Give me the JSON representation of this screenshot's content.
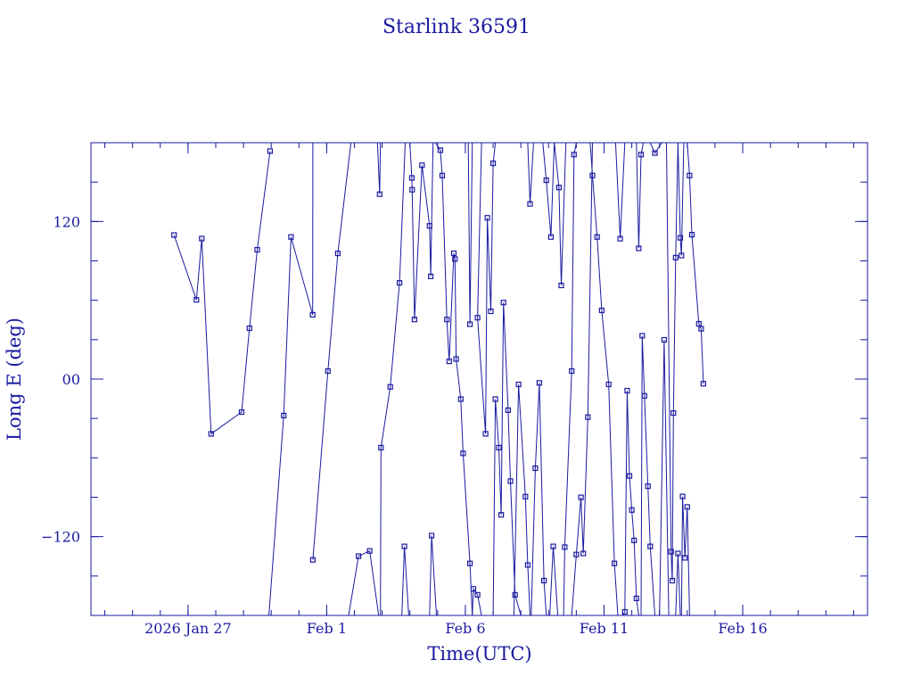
{
  "chart_data": {
    "type": "scatter",
    "title": "Starlink 36591",
    "xlabel": "Time(UTC)",
    "ylabel": "Long E (deg)",
    "x_range": [
      "2026-01-23T12:00",
      "2026-02-20T12:00"
    ],
    "ylim": [
      -180,
      180
    ],
    "x_ticks": [
      {
        "label": "2026 Jan 27",
        "x": "2026-01-27"
      },
      {
        "label": "Feb  1",
        "x": "2026-02-01"
      },
      {
        "label": "Feb  6",
        "x": "2026-02-06"
      },
      {
        "label": "Feb 11",
        "x": "2026-02-11"
      },
      {
        "label": "Feb 16",
        "x": "2026-02-16"
      }
    ],
    "y_ticks": [
      {
        "label": "−120",
        "y": -120
      },
      {
        "label": "00",
        "y": 0
      },
      {
        "label": "120",
        "y": 120
      }
    ],
    "marker": "open-square",
    "line_color": "#1a1aa0",
    "series": [
      {
        "points": [
          [
            "2026-01-26T11:54",
            109.7
          ],
          [
            "2026-01-27T07:18",
            60.3
          ],
          [
            "2026-01-27T11:54",
            107.0
          ],
          [
            "2026-01-27T20:00",
            -41.7
          ],
          [
            "2026-01-28T22:24",
            -25.1
          ],
          [
            "2026-01-29T05:12",
            38.7
          ],
          [
            "2026-01-29T11:54",
            98.5
          ],
          [
            "2026-01-29T23:00",
            173.6
          ]
        ]
      },
      {
        "points": [
          [
            "2026-01-29T22:00",
            -180.0
          ],
          [
            "2026-01-30T10:48",
            -27.8
          ],
          [
            "2026-01-30T17:06",
            108.2
          ],
          [
            "2026-01-31T11:54",
            49.0
          ],
          [
            "2026-01-31T12:00",
            180.0
          ]
        ]
      },
      {
        "points": [
          [
            "2026-01-31T12:00",
            -137.7
          ],
          [
            "2026-02-01T01:04",
            6.1
          ],
          [
            "2026-02-01T09:36",
            95.7
          ],
          [
            "2026-02-01T21:00",
            180.0
          ]
        ]
      },
      {
        "points": [
          [
            "2026-02-01T19:00",
            -180.0
          ],
          [
            "2026-02-02T03:30",
            -134.9
          ],
          [
            "2026-02-02T13:12",
            -130.9
          ],
          [
            "2026-02-02T21:00",
            -180.0
          ]
        ]
      },
      {
        "points": [
          [
            "2026-02-02T20:00",
            180.0
          ],
          [
            "2026-02-02T21:50",
            140.8
          ],
          [
            "2026-02-02T22:30",
            180.0
          ]
        ]
      },
      {
        "points": [
          [
            "2026-02-02T22:30",
            -180.0
          ],
          [
            "2026-02-02T23:00",
            -52.2
          ],
          [
            "2026-02-03T07:00",
            -5.9
          ],
          [
            "2026-02-03T15:00",
            73.3
          ],
          [
            "2026-02-03T20:00",
            180.0
          ]
        ]
      },
      {
        "points": [
          [
            "2026-02-03T17:00",
            -180.0
          ],
          [
            "2026-02-03T19:18",
            -127.4
          ],
          [
            "2026-02-03T23:00",
            -180.0
          ]
        ]
      },
      {
        "points": [
          [
            "2026-02-04T00:00",
            180.0
          ],
          [
            "2026-02-04T01:40",
            153.2
          ],
          [
            "2026-02-04T02:00",
            144.2
          ],
          [
            "2026-02-04T04:00",
            45.4
          ],
          [
            "2026-02-04T10:30",
            162.8
          ],
          [
            "2026-02-04T17:00",
            116.7
          ],
          [
            "2026-02-04T18:00",
            78.2
          ],
          [
            "2026-02-04T20:00",
            180.0
          ]
        ]
      },
      {
        "points": [
          [
            "2026-02-04T17:00",
            -180.0
          ],
          [
            "2026-02-04T18:48",
            -119.2
          ],
          [
            "2026-02-04T23:00",
            -180.0
          ]
        ]
      },
      {
        "points": [
          [
            "2026-02-04T22:00",
            180.0
          ],
          [
            "2026-02-05T02:24",
            174.3
          ],
          [
            "2026-02-05T04:00",
            155.0
          ],
          [
            "2026-02-05T08:00",
            45.4
          ],
          [
            "2026-02-05T10:00",
            13.5
          ],
          [
            "2026-02-05T14:00",
            95.8
          ],
          [
            "2026-02-05T15:00",
            91.4
          ],
          [
            "2026-02-05T16:00",
            15.3
          ],
          [
            "2026-02-05T20:00",
            -15.3
          ],
          [
            "2026-02-05T22:00",
            -56.6
          ],
          [
            "2026-02-06T04:00",
            -140.4
          ],
          [
            "2026-02-06T06:00",
            -180.0
          ]
        ]
      },
      {
        "points": [
          [
            "2026-02-06T02:30",
            180.0
          ],
          [
            "2026-02-06T04:00",
            41.8
          ],
          [
            "2026-02-06T06:00",
            180.0
          ]
        ]
      },
      {
        "points": [
          [
            "2026-02-06T06:00",
            -180.0
          ],
          [
            "2026-02-06T07:00",
            -159.8
          ],
          [
            "2026-02-06T10:30",
            -164.3
          ],
          [
            "2026-02-06T14:00",
            -180.0
          ]
        ]
      },
      {
        "points": [
          [
            "2026-02-06T14:00",
            180.0
          ],
          [
            "2026-02-06T10:30",
            46.7
          ],
          [
            "2026-02-06T17:30",
            -41.7
          ],
          [
            "2026-02-06T19:00",
            122.8
          ],
          [
            "2026-02-06T22:00",
            51.6
          ],
          [
            "2026-02-07T00:00",
            164.3
          ],
          [
            "2026-02-07T02:00",
            180.0
          ]
        ]
      },
      {
        "points": [
          [
            "2026-02-07T00:00",
            -180.0
          ],
          [
            "2026-02-07T02:00",
            -15.3
          ],
          [
            "2026-02-07T05:00",
            -52.2
          ],
          [
            "2026-02-07T07:00",
            -103.4
          ],
          [
            "2026-02-07T09:00",
            58.3
          ],
          [
            "2026-02-07T13:00",
            -23.7
          ],
          [
            "2026-02-07T15:00",
            -77.7
          ],
          [
            "2026-02-07T19:00",
            -164.3
          ],
          [
            "2026-02-08T00:00",
            -180.0
          ]
        ]
      },
      {
        "points": [
          [
            "2026-02-07T18:00",
            -180.0
          ],
          [
            "2026-02-07T22:00",
            -4.1
          ],
          [
            "2026-02-08T04:00",
            -89.5
          ],
          [
            "2026-02-08T06:00",
            -141.6
          ],
          [
            "2026-02-08T08:00",
            -180.0
          ]
        ]
      },
      {
        "points": [
          [
            "2026-02-08T06:00",
            180.0
          ],
          [
            "2026-02-08T08:00",
            133.4
          ],
          [
            "2026-02-08T11:00",
            180.0
          ]
        ]
      },
      {
        "points": [
          [
            "2026-02-08T09:00",
            -180.0
          ],
          [
            "2026-02-08T12:30",
            -67.9
          ],
          [
            "2026-02-08T16:00",
            -2.9
          ],
          [
            "2026-02-08T20:00",
            -153.5
          ],
          [
            "2026-02-08T22:00",
            -180.0
          ]
        ]
      },
      {
        "points": [
          [
            "2026-02-08T19:00",
            180.0
          ],
          [
            "2026-02-08T22:00",
            151.4
          ],
          [
            "2026-02-09T02:00",
            108.2
          ],
          [
            "2026-02-09T05:00",
            180.0
          ]
        ]
      },
      {
        "points": [
          [
            "2026-02-09T01:00",
            -180.0
          ],
          [
            "2026-02-09T04:00",
            -127.4
          ],
          [
            "2026-02-09T08:00",
            -180.0
          ]
        ]
      },
      {
        "points": [
          [
            "2026-02-09T05:00",
            180.0
          ],
          [
            "2026-02-09T09:00",
            145.9
          ],
          [
            "2026-02-09T11:00",
            71.3
          ],
          [
            "2026-02-09T15:00",
            180.0
          ]
        ]
      },
      {
        "points": [
          [
            "2026-02-09T13:00",
            -180.0
          ],
          [
            "2026-02-09T14:00",
            -128.0
          ],
          [
            "2026-02-09T20:00",
            6.1
          ],
          [
            "2026-02-09T22:00",
            171.0
          ],
          [
            "2026-02-10T00:00",
            180.0
          ]
        ]
      },
      {
        "points": [
          [
            "2026-02-09T20:00",
            -180.0
          ],
          [
            "2026-02-10T00:00",
            -133.6
          ],
          [
            "2026-02-10T04:00",
            -90.1
          ],
          [
            "2026-02-10T06:00",
            -132.8
          ],
          [
            "2026-02-10T10:00",
            -29.0
          ],
          [
            "2026-02-10T14:00",
            180.0
          ]
        ]
      },
      {
        "points": [
          [
            "2026-02-10T12:00",
            180.0
          ],
          [
            "2026-02-10T14:00",
            155.0
          ],
          [
            "2026-02-10T18:00",
            108.2
          ],
          [
            "2026-02-10T22:00",
            52.3
          ],
          [
            "2026-02-11T04:00",
            -4.1
          ],
          [
            "2026-02-11T09:00",
            -140.4
          ],
          [
            "2026-02-11T12:00",
            -180.0
          ]
        ]
      },
      {
        "points": [
          [
            "2026-02-11T10:00",
            180.0
          ],
          [
            "2026-02-11T14:00",
            106.9
          ],
          [
            "2026-02-11T18:00",
            180.0
          ]
        ]
      },
      {
        "points": [
          [
            "2026-02-11T16:00",
            -180.0
          ],
          [
            "2026-02-11T18:00",
            -177.3
          ],
          [
            "2026-02-11T20:00",
            -8.8
          ],
          [
            "2026-02-11T22:00",
            -73.8
          ],
          [
            "2026-02-12T00:00",
            -99.7
          ],
          [
            "2026-02-12T02:00",
            -122.9
          ],
          [
            "2026-02-12T04:00",
            -167.0
          ],
          [
            "2026-02-12T06:00",
            -180.0
          ]
        ]
      },
      {
        "points": [
          [
            "2026-02-12T04:00",
            180.0
          ],
          [
            "2026-02-12T06:00",
            99.6
          ],
          [
            "2026-02-12T08:00",
            171.0
          ],
          [
            "2026-02-12T10:00",
            180.0
          ]
        ]
      },
      {
        "points": [
          [
            "2026-02-12T08:00",
            -180.0
          ],
          [
            "2026-02-12T09:00",
            33.0
          ],
          [
            "2026-02-12T11:00",
            -12.8
          ],
          [
            "2026-02-12T14:00",
            -81.6
          ],
          [
            "2026-02-12T16:00",
            -127.4
          ],
          [
            "2026-02-12T20:00",
            -180.0
          ]
        ]
      },
      {
        "points": [
          [
            "2026-02-12T16:00",
            180.0
          ],
          [
            "2026-02-12T20:00",
            172.1
          ],
          [
            "2026-02-13T02:00",
            180.0
          ]
        ]
      },
      {
        "points": [
          [
            "2026-02-13T00:00",
            -180.0
          ],
          [
            "2026-02-13T04:00",
            29.9
          ],
          [
            "2026-02-13T08:00",
            -180.0
          ]
        ]
      },
      {
        "points": [
          [
            "2026-02-13T06:00",
            180.0
          ],
          [
            "2026-02-13T10:00",
            -131.4
          ],
          [
            "2026-02-13T11:00",
            -153.5
          ],
          [
            "2026-02-13T12:00",
            -25.9
          ],
          [
            "2026-02-13T14:00",
            92.5
          ],
          [
            "2026-02-13T16:00",
            180.0
          ]
        ]
      },
      {
        "points": [
          [
            "2026-02-13T14:00",
            -180.0
          ],
          [
            "2026-02-13T16:00",
            -132.8
          ],
          [
            "2026-02-13T18:00",
            -180.0
          ]
        ]
      },
      {
        "points": [
          [
            "2026-02-13T16:00",
            180.0
          ],
          [
            "2026-02-13T18:00",
            107.6
          ],
          [
            "2026-02-13T19:00",
            94.1
          ],
          [
            "2026-02-13T21:00",
            180.0
          ]
        ]
      },
      {
        "points": [
          [
            "2026-02-13T19:00",
            -180.0
          ],
          [
            "2026-02-13T20:00",
            -89.4
          ],
          [
            "2026-02-13T22:00",
            -136.1
          ],
          [
            "2026-02-14T00:00",
            -97.4
          ],
          [
            "2026-02-14T02:00",
            -180.0
          ]
        ]
      },
      {
        "points": [
          [
            "2026-02-14T00:00",
            180.0
          ],
          [
            "2026-02-14T02:00",
            155.0
          ],
          [
            "2026-02-14T04:00",
            110.0
          ],
          [
            "2026-02-14T10:00",
            42.1
          ],
          [
            "2026-02-14T12:00",
            38.3
          ],
          [
            "2026-02-14T14:00",
            -3.5
          ]
        ]
      }
    ]
  }
}
